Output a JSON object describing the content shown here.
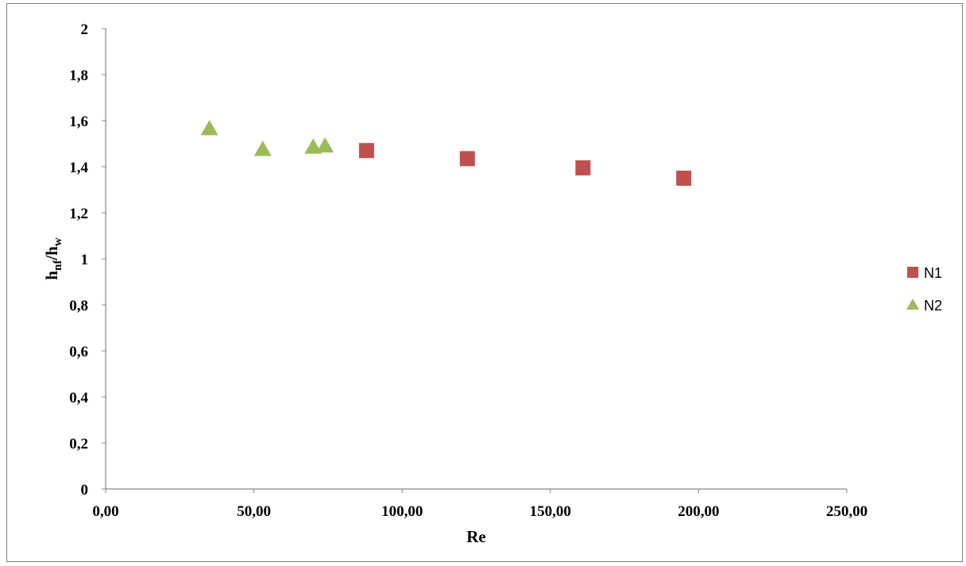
{
  "chart_data": {
    "type": "scatter",
    "title": "",
    "xlabel": "Re",
    "ylabel_main": "h",
    "ylabel_sub1": "nf",
    "ylabel_mid": "/h",
    "ylabel_sub2": "w",
    "xlim": [
      0,
      250
    ],
    "ylim": [
      0,
      2
    ],
    "x_ticks": [
      0,
      50,
      100,
      150,
      200,
      250
    ],
    "x_tick_labels": [
      "0,00",
      "50,00",
      "100,00",
      "150,00",
      "200,00",
      "250,00"
    ],
    "y_ticks": [
      0,
      0.2,
      0.4,
      0.6,
      0.8,
      1,
      1.2,
      1.4,
      1.6,
      1.8,
      2
    ],
    "y_tick_labels": [
      "0",
      "0,2",
      "0,4",
      "0,6",
      "0,8",
      "1",
      "1,2",
      "1,4",
      "1,6",
      "1,8",
      "2"
    ],
    "grid": false,
    "legend_position": "right",
    "series": [
      {
        "name": "N1",
        "marker": "square",
        "color": "#c0504d",
        "points": [
          {
            "x": 88,
            "y": 1.47
          },
          {
            "x": 122,
            "y": 1.435
          },
          {
            "x": 161,
            "y": 1.395
          },
          {
            "x": 195,
            "y": 1.35
          }
        ]
      },
      {
        "name": "N2",
        "marker": "triangle",
        "color": "#9bbb59",
        "points": [
          {
            "x": 35,
            "y": 1.565
          },
          {
            "x": 53,
            "y": 1.475
          },
          {
            "x": 70,
            "y": 1.485
          },
          {
            "x": 74,
            "y": 1.49
          }
        ]
      }
    ]
  }
}
